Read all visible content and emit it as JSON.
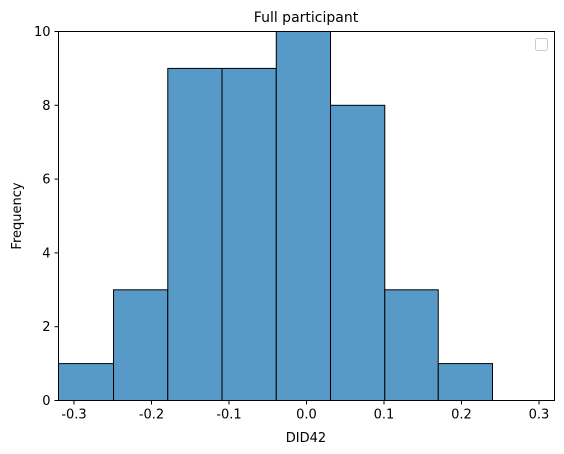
{
  "chart_data": {
    "type": "bar",
    "title": "Full participant",
    "xlabel": "DID42",
    "ylabel": "Frequency",
    "xlim": [
      -0.32,
      0.32
    ],
    "ylim": [
      0,
      10
    ],
    "xticks": [
      -0.3,
      -0.2,
      -0.1,
      0.0,
      0.1,
      0.2,
      0.3
    ],
    "xtick_labels": [
      "-0.3",
      "-0.2",
      "-0.1",
      "0.0",
      "0.1",
      "0.2",
      "0.3"
    ],
    "yticks": [
      0,
      2,
      4,
      6,
      8,
      10
    ],
    "ytick_labels": [
      "0",
      "2",
      "4",
      "6",
      "8",
      "10"
    ],
    "bins": [
      {
        "start": -0.32,
        "end": -0.249,
        "count": 1
      },
      {
        "start": -0.249,
        "end": -0.179,
        "count": 3
      },
      {
        "start": -0.179,
        "end": -0.109,
        "count": 9
      },
      {
        "start": -0.109,
        "end": -0.039,
        "count": 9
      },
      {
        "start": -0.039,
        "end": 0.031,
        "count": 10
      },
      {
        "start": 0.031,
        "end": 0.101,
        "count": 8
      },
      {
        "start": 0.101,
        "end": 0.17,
        "count": 3
      },
      {
        "start": 0.17,
        "end": 0.24,
        "count": 1
      }
    ],
    "bar_color": "#5799c7",
    "edge_color": "#000000",
    "grid": false,
    "legend": {
      "placement": "top-right",
      "entries": []
    }
  }
}
